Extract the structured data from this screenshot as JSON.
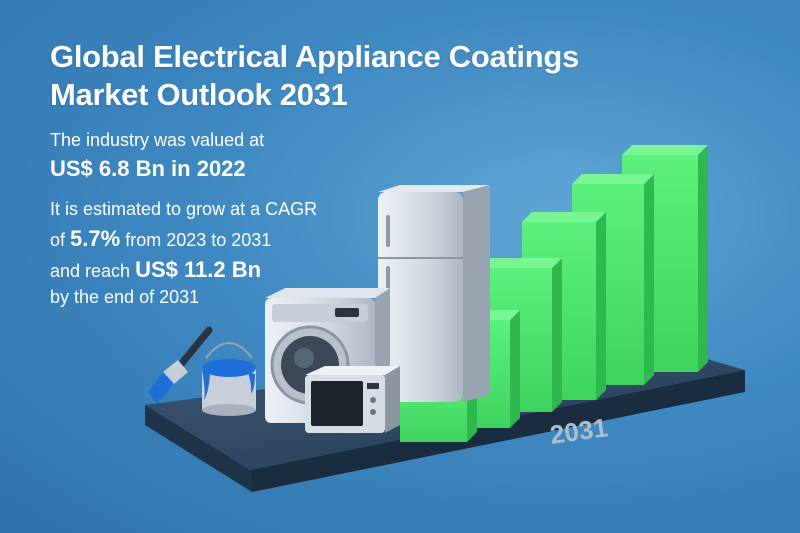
{
  "title": {
    "line1": "Global Electrical Appliance Coatings",
    "line2": "Market Outlook 2031"
  },
  "stats": {
    "valued_intro": "The industry was valued at",
    "valued_amount": "US$ 6.8 Bn in 2022",
    "growth_intro": "It is estimated to grow at a CAGR",
    "growth_prefix": "of",
    "cagr": "5.7%",
    "growth_period": "from 2023 to 2031",
    "reach_prefix": "and reach",
    "reach_amount": "US$ 11.2 Bn",
    "reach_suffix": "by the end of 2031"
  },
  "platform": {
    "year_label": "2031"
  },
  "colors": {
    "bar_green": "#4fe56e",
    "bar_green_dark": "#2fb84e",
    "platform": "#2f4a66",
    "paint_blue": "#1e6fd8"
  },
  "icons": [
    "paintbrush-icon",
    "paint-can-icon",
    "washing-machine-icon",
    "refrigerator-icon",
    "microwave-icon"
  ]
}
